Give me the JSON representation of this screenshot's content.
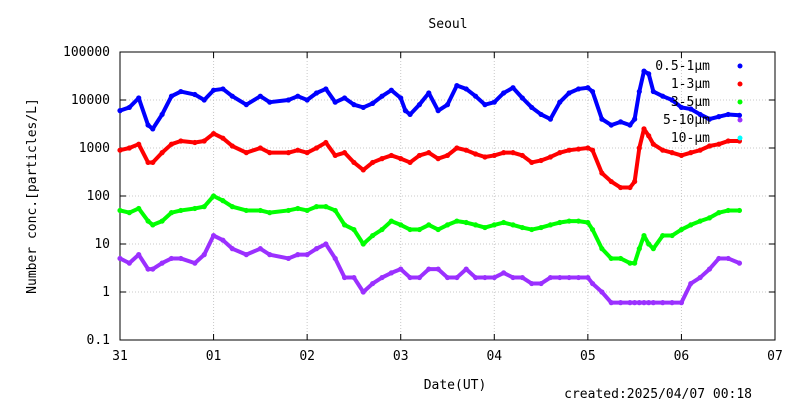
{
  "chart_data": {
    "type": "scatter",
    "title": "Seoul",
    "xlabel": "Date(UT)",
    "ylabel": "Number conc.[particles/L]",
    "y_scale": "log",
    "ylim": [
      0.1,
      100000
    ],
    "y_ticks": [
      "100000",
      "10000",
      "1000",
      "100",
      "10",
      "1",
      "0.1"
    ],
    "x_ticks": [
      "31",
      "01",
      "02",
      "03",
      "04",
      "05",
      "06",
      "07"
    ],
    "xlim": [
      0,
      7
    ],
    "grid": true,
    "legend_position": "top-right",
    "footer": "created:2025/04/07 00:18",
    "series": [
      {
        "name": "0.5-1μm",
        "legend_label": "0.5-1μm",
        "color": "#0000ff",
        "x": [
          0,
          0.1,
          0.2,
          0.3,
          0.35,
          0.45,
          0.55,
          0.65,
          0.8,
          0.9,
          1.0,
          1.1,
          1.2,
          1.35,
          1.5,
          1.6,
          1.8,
          1.9,
          2.0,
          2.1,
          2.2,
          2.3,
          2.4,
          2.5,
          2.6,
          2.7,
          2.8,
          2.9,
          3.0,
          3.05,
          3.1,
          3.2,
          3.3,
          3.4,
          3.5,
          3.6,
          3.7,
          3.8,
          3.9,
          4.0,
          4.1,
          4.2,
          4.3,
          4.4,
          4.5,
          4.6,
          4.7,
          4.8,
          4.9,
          5.0,
          5.05,
          5.15,
          5.25,
          5.35,
          5.45,
          5.5,
          5.55,
          5.6,
          5.65,
          5.7,
          5.8,
          5.9,
          6.0,
          6.1,
          6.2,
          6.3,
          6.4,
          6.5,
          6.62
        ],
        "y": [
          6000,
          7000,
          11000,
          3000,
          2500,
          5000,
          12000,
          15000,
          13000,
          10000,
          16000,
          17000,
          12000,
          8000,
          12000,
          9000,
          10000,
          12000,
          10000,
          14000,
          17000,
          9000,
          11000,
          8000,
          7000,
          8500,
          12000,
          16000,
          11000,
          6000,
          5000,
          8000,
          14000,
          6000,
          8000,
          20000,
          17000,
          12000,
          8000,
          9000,
          14000,
          18000,
          11000,
          7000,
          5000,
          4000,
          9000,
          14000,
          17000,
          18000,
          15000,
          4000,
          3000,
          3500,
          3000,
          4000,
          15000,
          40000,
          35000,
          15000,
          12000,
          10000,
          7000,
          6500,
          5000,
          4000,
          4500,
          5000,
          4800
        ]
      },
      {
        "name": "1-3μm",
        "legend_label": "1-3μm",
        "color": "#ff0000",
        "x": [
          0,
          0.1,
          0.2,
          0.3,
          0.35,
          0.45,
          0.55,
          0.65,
          0.8,
          0.9,
          1.0,
          1.1,
          1.2,
          1.35,
          1.5,
          1.6,
          1.8,
          1.9,
          2.0,
          2.1,
          2.2,
          2.3,
          2.4,
          2.5,
          2.6,
          2.7,
          2.8,
          2.9,
          3.0,
          3.1,
          3.2,
          3.3,
          3.4,
          3.5,
          3.6,
          3.7,
          3.8,
          3.9,
          4.0,
          4.1,
          4.2,
          4.3,
          4.4,
          4.5,
          4.6,
          4.7,
          4.8,
          4.9,
          5.0,
          5.05,
          5.15,
          5.25,
          5.35,
          5.45,
          5.5,
          5.55,
          5.6,
          5.65,
          5.7,
          5.8,
          5.9,
          6.0,
          6.1,
          6.2,
          6.3,
          6.4,
          6.5,
          6.62
        ],
        "y": [
          900,
          1000,
          1200,
          500,
          500,
          800,
          1200,
          1400,
          1300,
          1400,
          2000,
          1600,
          1100,
          800,
          1000,
          800,
          800,
          900,
          800,
          1000,
          1300,
          700,
          800,
          500,
          350,
          500,
          600,
          700,
          600,
          500,
          700,
          800,
          600,
          700,
          1000,
          900,
          750,
          650,
          700,
          800,
          800,
          700,
          500,
          550,
          650,
          800,
          900,
          950,
          1000,
          900,
          300,
          200,
          150,
          150,
          200,
          1000,
          2500,
          1800,
          1200,
          900,
          800,
          700,
          800,
          900,
          1100,
          1200,
          1400,
          1400
        ]
      },
      {
        "name": "3-5μm",
        "legend_label": "3-5μm",
        "color": "#00ff00",
        "x": [
          0,
          0.1,
          0.2,
          0.3,
          0.35,
          0.45,
          0.55,
          0.65,
          0.8,
          0.9,
          1.0,
          1.1,
          1.2,
          1.35,
          1.5,
          1.6,
          1.8,
          1.9,
          2.0,
          2.1,
          2.2,
          2.3,
          2.4,
          2.5,
          2.6,
          2.7,
          2.8,
          2.9,
          3.0,
          3.1,
          3.2,
          3.3,
          3.4,
          3.5,
          3.6,
          3.7,
          3.8,
          3.9,
          4.0,
          4.1,
          4.2,
          4.3,
          4.4,
          4.5,
          4.6,
          4.7,
          4.8,
          4.9,
          5.0,
          5.05,
          5.15,
          5.25,
          5.35,
          5.45,
          5.5,
          5.55,
          5.6,
          5.65,
          5.7,
          5.8,
          5.9,
          6.0,
          6.1,
          6.2,
          6.3,
          6.4,
          6.5,
          6.62
        ],
        "y": [
          50,
          45,
          55,
          30,
          25,
          30,
          45,
          50,
          55,
          60,
          100,
          80,
          60,
          50,
          50,
          45,
          50,
          55,
          50,
          60,
          60,
          50,
          25,
          20,
          10,
          15,
          20,
          30,
          25,
          20,
          20,
          25,
          20,
          25,
          30,
          28,
          25,
          22,
          25,
          28,
          25,
          22,
          20,
          22,
          25,
          28,
          30,
          30,
          28,
          20,
          8,
          5,
          5,
          4,
          4,
          8,
          15,
          10,
          8,
          15,
          15,
          20,
          25,
          30,
          35,
          45,
          50,
          50
        ]
      },
      {
        "name": "5-10μm",
        "legend_label": "5-10μm",
        "color": "#9b30ff",
        "x": [
          0,
          0.1,
          0.2,
          0.3,
          0.35,
          0.45,
          0.55,
          0.65,
          0.8,
          0.9,
          1.0,
          1.1,
          1.2,
          1.35,
          1.5,
          1.6,
          1.8,
          1.9,
          2.0,
          2.1,
          2.2,
          2.3,
          2.4,
          2.5,
          2.6,
          2.7,
          2.8,
          2.9,
          3.0,
          3.1,
          3.2,
          3.3,
          3.4,
          3.5,
          3.6,
          3.7,
          3.8,
          3.9,
          4.0,
          4.1,
          4.2,
          4.3,
          4.4,
          4.5,
          4.6,
          4.7,
          4.8,
          4.9,
          5.0,
          5.05,
          5.15,
          5.25,
          5.35,
          5.45,
          5.5,
          5.55,
          5.6,
          5.65,
          5.7,
          5.8,
          5.9,
          6.0,
          6.1,
          6.2,
          6.3,
          6.4,
          6.5,
          6.62
        ],
        "y": [
          5,
          4,
          6,
          3,
          3,
          4,
          5,
          5,
          4,
          6,
          15,
          12,
          8,
          6,
          8,
          6,
          5,
          6,
          6,
          8,
          10,
          5,
          2,
          2,
          1,
          1.5,
          2,
          2.5,
          3,
          2,
          2,
          3,
          3,
          2,
          2,
          3,
          2,
          2,
          2,
          2.5,
          2,
          2,
          1.5,
          1.5,
          2,
          2,
          2,
          2,
          2,
          1.5,
          1,
          0.6,
          0.6,
          0.6,
          0.6,
          0.6,
          0.6,
          0.6,
          0.6,
          0.6,
          0.6,
          0.6,
          1.5,
          2,
          3,
          5,
          5,
          4
        ]
      },
      {
        "name": "10-μm",
        "legend_label": "10-μm",
        "color": "#00ffff",
        "x": [],
        "y": []
      }
    ]
  }
}
